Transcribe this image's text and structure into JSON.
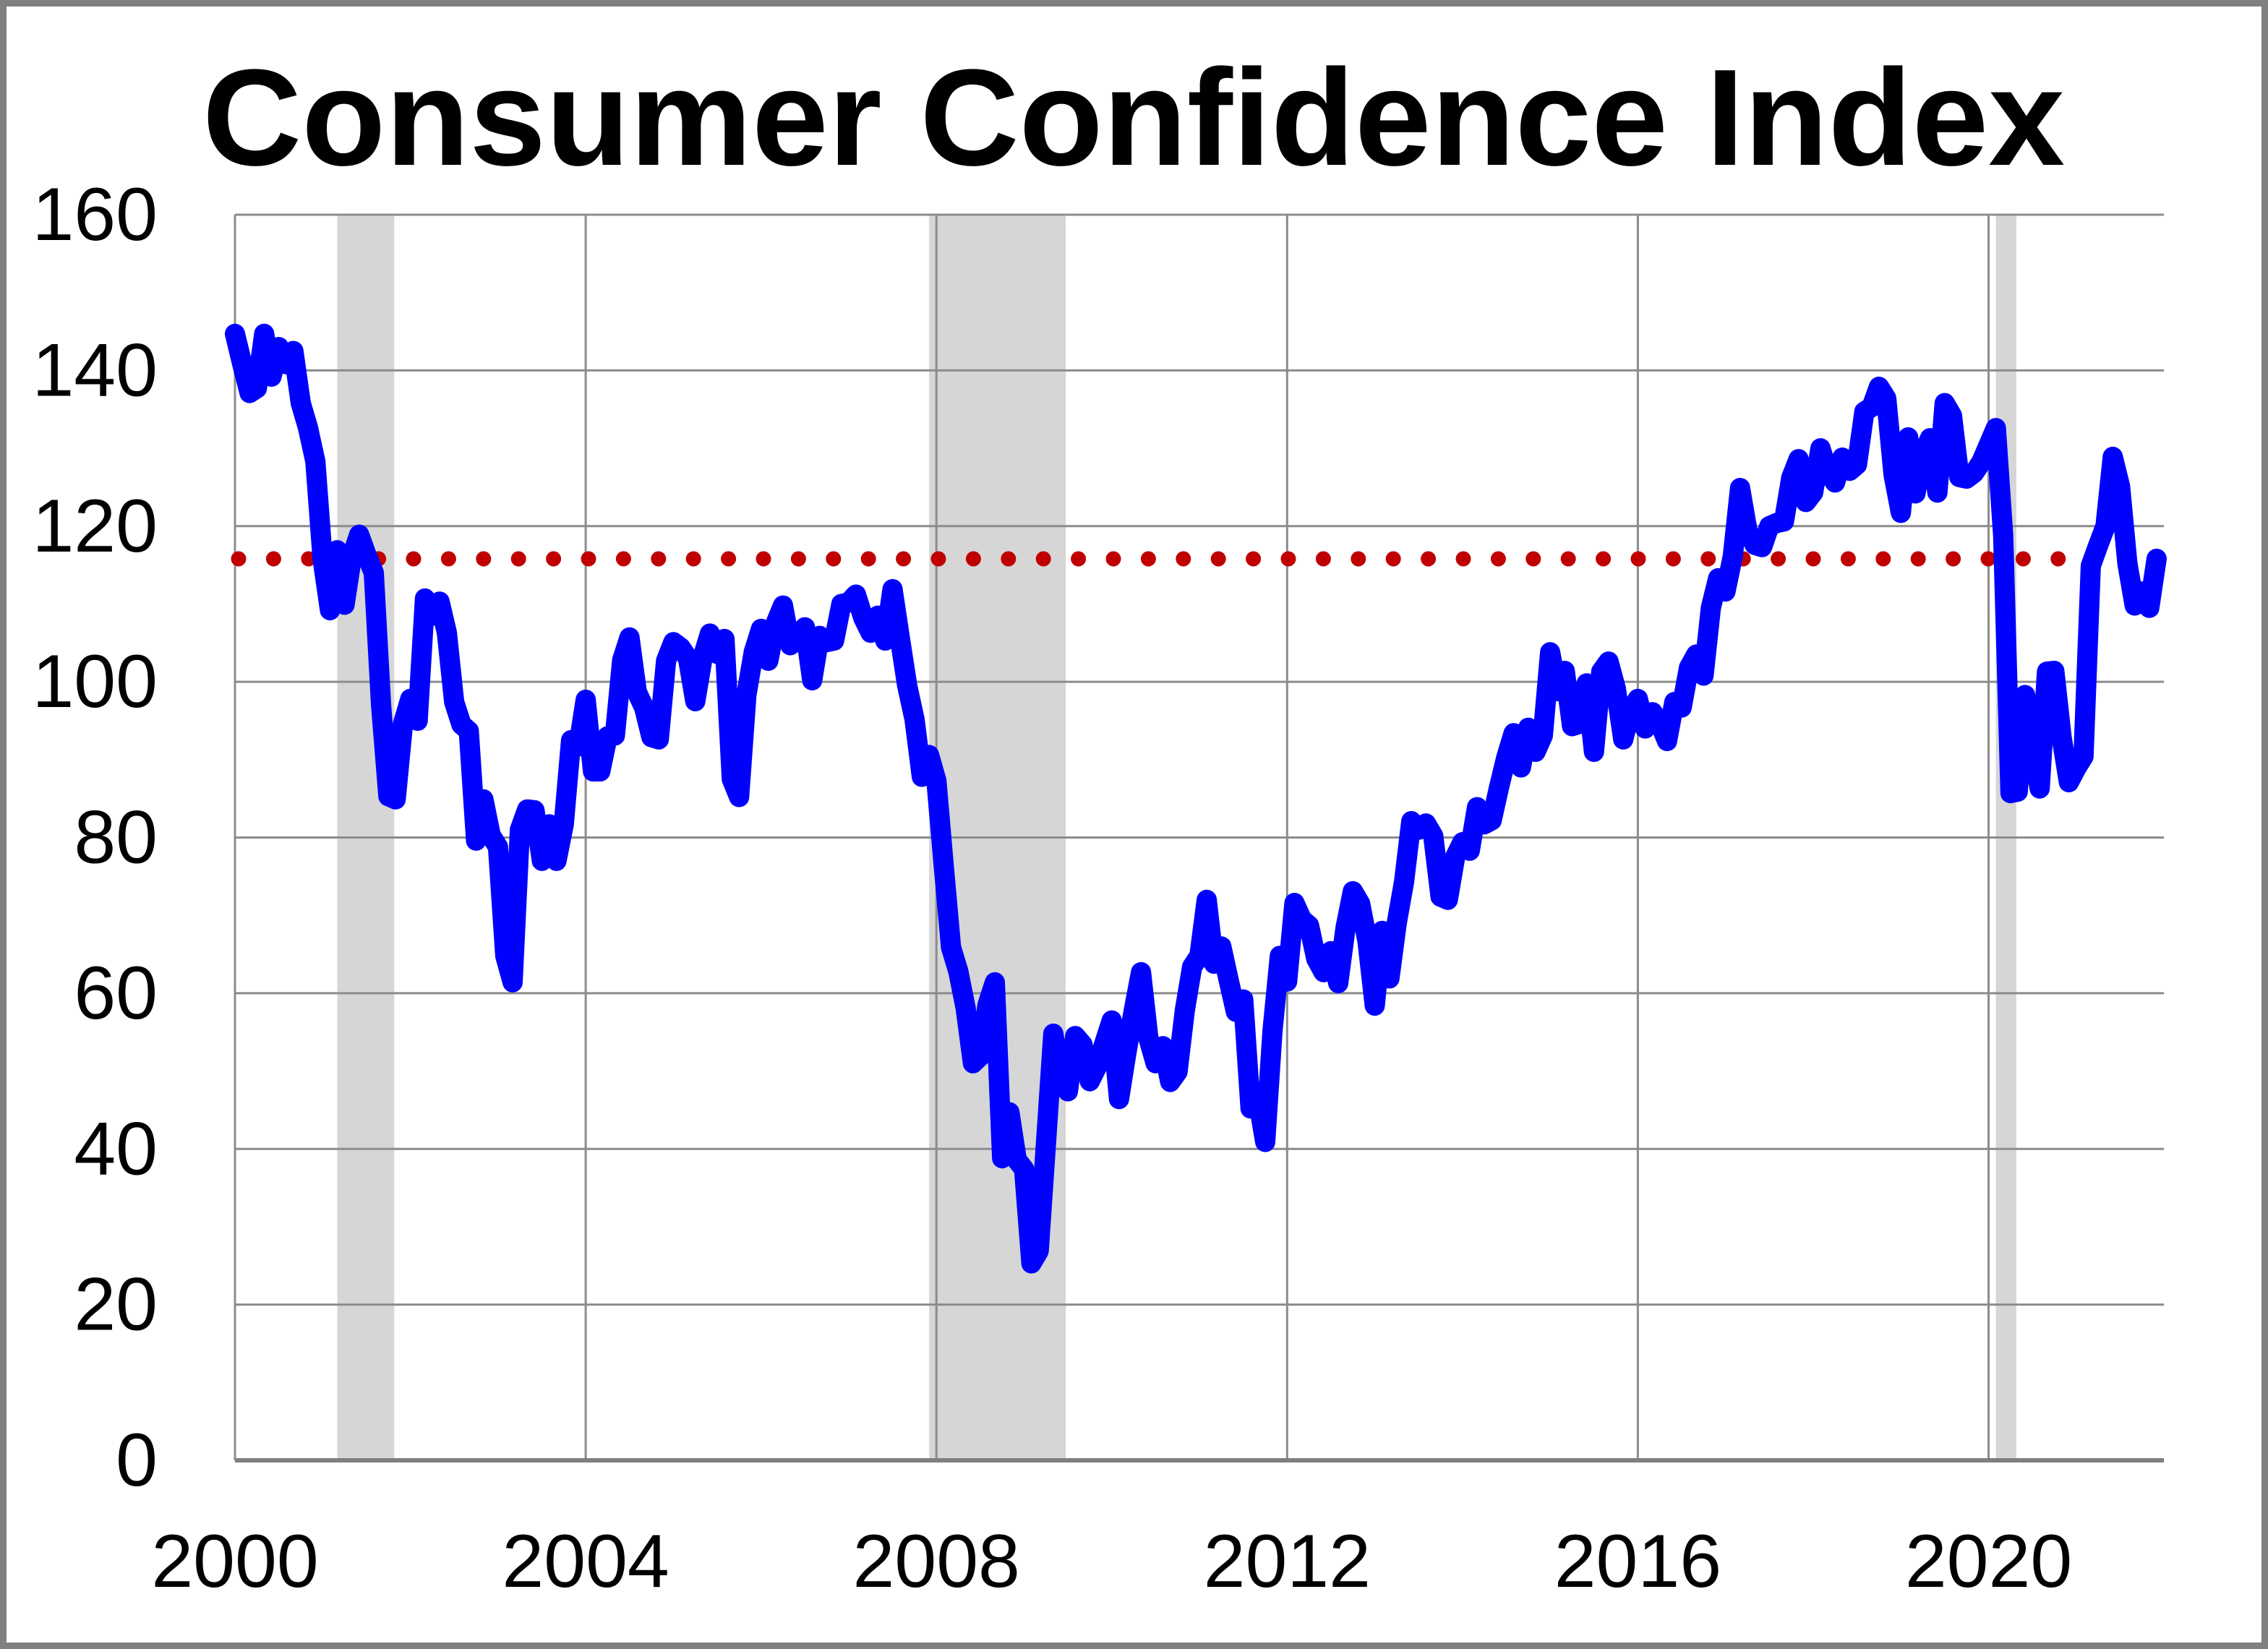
{
  "chart_data": {
    "type": "line",
    "title": "Consumer Confidence Index",
    "xlabel": "",
    "ylabel": "",
    "x_axis": {
      "start": "2000-01",
      "end": "2021-12",
      "total_months_span": 264
    },
    "x_tick_labels": [
      "2000",
      "2004",
      "2008",
      "2012",
      "2016",
      "2020"
    ],
    "x_tick_months": [
      0,
      48,
      96,
      144,
      192,
      240
    ],
    "y_ticks": [
      0,
      20,
      40,
      60,
      80,
      100,
      120,
      140,
      160
    ],
    "ylim": [
      0,
      160
    ],
    "grid": true,
    "legend": "none",
    "series": [
      {
        "name": "Consumer Confidence Index (monthly)",
        "values": [
          144.7,
          140.8,
          137.1,
          137.7,
          144.7,
          139.2,
          143.0,
          140.8,
          142.5,
          135.8,
          132.6,
          128.3,
          115.7,
          109.2,
          116.9,
          109.9,
          116.1,
          118.9,
          116.3,
          114.0,
          97.0,
          85.3,
          84.9,
          94.6,
          97.8,
          95.0,
          110.7,
          108.5,
          110.3,
          106.3,
          97.4,
          94.5,
          93.7,
          79.6,
          84.9,
          80.3,
          78.8,
          64.8,
          61.4,
          81.0,
          83.6,
          83.5,
          77.0,
          81.7,
          77.0,
          81.7,
          92.5,
          91.7,
          97.7,
          88.5,
          88.5,
          93.0,
          93.1,
          102.8,
          105.7,
          98.7,
          96.7,
          92.9,
          92.6,
          102.7,
          105.1,
          104.4,
          103.0,
          97.5,
          103.1,
          106.2,
          103.6,
          105.5,
          87.5,
          85.2,
          98.3,
          103.8,
          106.8,
          102.7,
          107.5,
          109.8,
          104.7,
          105.4,
          107.0,
          100.2,
          105.9,
          105.1,
          105.3,
          110.0,
          110.2,
          111.2,
          108.2,
          106.3,
          108.5,
          105.3,
          111.9,
          105.6,
          99.5,
          95.2,
          87.8,
          90.6,
          87.3,
          76.4,
          65.9,
          62.8,
          58.1,
          51.0,
          51.9,
          58.5,
          61.4,
          38.8,
          44.7,
          38.6,
          37.4,
          25.3,
          26.9,
          40.8,
          54.8,
          49.3,
          47.4,
          54.5,
          53.4,
          48.7,
          50.6,
          53.6,
          56.5,
          46.4,
          52.3,
          57.7,
          62.7,
          54.3,
          51.0,
          53.2,
          48.6,
          49.9,
          57.8,
          63.4,
          64.8,
          72.0,
          63.8,
          66.0,
          61.7,
          57.6,
          59.2,
          45.2,
          46.4,
          40.9,
          55.2,
          64.8,
          61.5,
          71.6,
          69.5,
          68.7,
          64.4,
          62.7,
          65.4,
          61.3,
          68.4,
          73.1,
          71.5,
          66.7,
          58.4,
          68.0,
          61.9,
          69.0,
          74.3,
          82.1,
          81.0,
          81.8,
          80.2,
          72.4,
          72.0,
          77.5,
          79.4,
          78.3,
          83.9,
          81.7,
          82.2,
          86.4,
          90.3,
          93.4,
          89.0,
          94.1,
          91.0,
          93.1,
          103.8,
          98.8,
          101.4,
          94.3,
          94.6,
          99.8,
          91.0,
          101.3,
          102.6,
          99.1,
          92.6,
          96.3,
          97.8,
          94.0,
          96.1,
          94.7,
          92.4,
          97.4,
          96.7,
          101.8,
          103.5,
          100.8,
          109.5,
          113.3,
          111.6,
          116.1,
          124.9,
          119.4,
          117.6,
          117.3,
          120.0,
          120.4,
          120.6,
          126.2,
          128.6,
          123.1,
          124.3,
          130.0,
          127.0,
          125.6,
          128.8,
          127.1,
          127.9,
          134.7,
          135.3,
          137.9,
          136.4,
          126.6,
          121.7,
          131.4,
          124.2,
          129.2,
          131.3,
          124.3,
          135.8,
          134.2,
          126.3,
          126.1,
          126.8,
          128.2,
          130.4,
          132.6,
          118.8,
          85.7,
          85.9,
          98.3,
          91.7,
          86.3,
          101.3,
          101.4,
          92.9,
          87.1,
          88.9,
          90.4,
          114.9,
          117.5,
          120.0,
          128.9,
          125.1,
          115.2,
          109.8,
          111.6,
          109.5,
          115.8
        ]
      }
    ],
    "reference_line": {
      "value": 115.8,
      "style": "dotted"
    },
    "recession_bands": [
      {
        "from_month": 14,
        "to_month": 21.8
      },
      {
        "from_month": 95,
        "to_month": 113.7
      },
      {
        "from_month": 241,
        "to_month": 243.8
      }
    ],
    "colors": {
      "line": "#0000FF",
      "reference": "#C00000",
      "band": "#D6D6D6",
      "grid": "#8C8C8C",
      "axis": "#7F7F7F",
      "frame": "#808080",
      "background": "#FFFFFF",
      "text": "#000000"
    }
  }
}
